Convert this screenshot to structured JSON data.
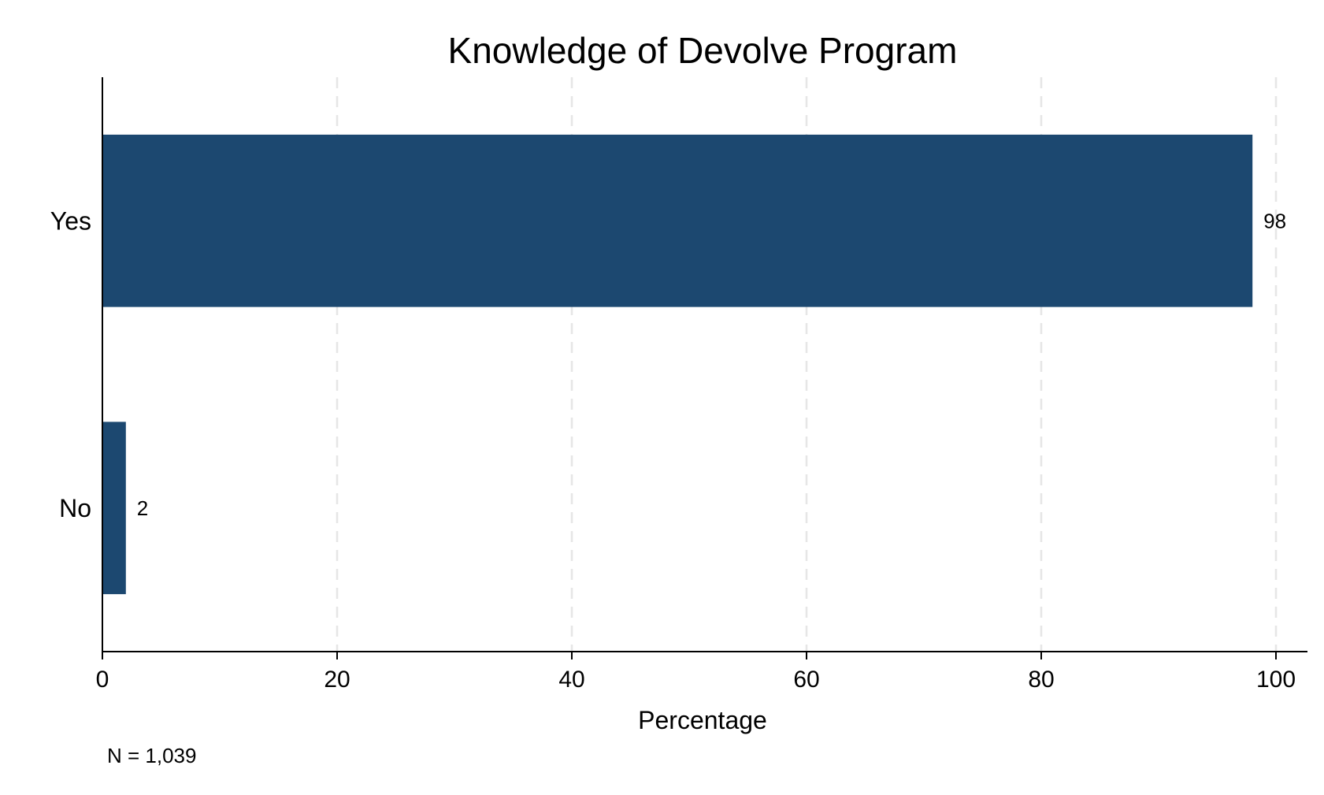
{
  "chart_data": {
    "type": "bar",
    "orientation": "horizontal",
    "title": "Knowledge of Devolve Program",
    "xlabel": "Percentage",
    "ylabel": "",
    "categories": [
      "Yes",
      "No"
    ],
    "values": [
      98,
      2
    ],
    "data_labels": [
      "98",
      "2"
    ],
    "xlim": [
      0,
      100
    ],
    "xticks": [
      0,
      20,
      40,
      60,
      80,
      100
    ],
    "grid": "vertical dashed",
    "note": "N = 1,039",
    "colors": {
      "bar": "#1c4870",
      "grid": "#e6e6e6",
      "axis": "#000000"
    }
  }
}
